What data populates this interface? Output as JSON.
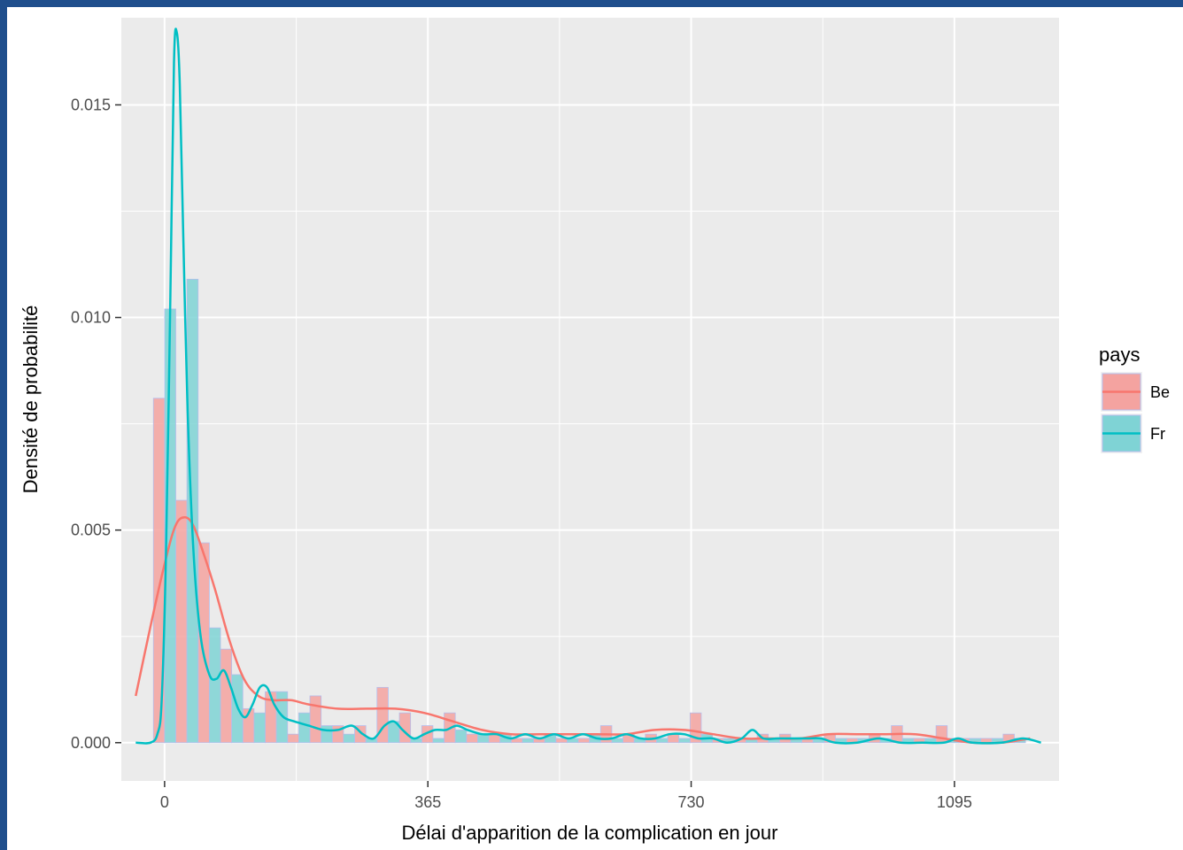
{
  "chart_data": {
    "type": "bar",
    "subtype": "histogram with density curves",
    "title": "",
    "xlabel": "Délai d'apparition de la complication en jour",
    "ylabel": "Densité de probabilité",
    "xlim": [
      -60,
      1240
    ],
    "ylim": [
      -0.0009,
      0.01705
    ],
    "x_ticks": [
      0,
      365,
      730,
      1095
    ],
    "x_tick_labels": [
      "0",
      "365",
      "730",
      "1095"
    ],
    "y_ticks": [
      0.0,
      0.005,
      0.01,
      0.015
    ],
    "y_tick_labels": [
      "0.000",
      "0.005",
      "0.010",
      "0.015"
    ],
    "grid": true,
    "bin_width": 31,
    "legend": {
      "title": "pays",
      "position": "right",
      "entries": [
        "Be",
        "Fr"
      ]
    },
    "series": [
      {
        "name": "Be",
        "color": "#F8766D",
        "fill": "#F4A3A0",
        "bins": [
          {
            "x": 0,
            "y": 0.0081
          },
          {
            "x": 31,
            "y": 0.0057
          },
          {
            "x": 62,
            "y": 0.0047
          },
          {
            "x": 93,
            "y": 0.0022
          },
          {
            "x": 124,
            "y": 0.0008
          },
          {
            "x": 155,
            "y": 0.0012
          },
          {
            "x": 186,
            "y": 0.0002
          },
          {
            "x": 217,
            "y": 0.0011
          },
          {
            "x": 248,
            "y": 0.0004
          },
          {
            "x": 279,
            "y": 0.0004
          },
          {
            "x": 310,
            "y": 0.0013
          },
          {
            "x": 341,
            "y": 0.0007
          },
          {
            "x": 372,
            "y": 0.0004
          },
          {
            "x": 403,
            "y": 0.0007
          },
          {
            "x": 434,
            "y": 0.0002
          },
          {
            "x": 465,
            "y": 0.0002
          },
          {
            "x": 496,
            "y": 0.0001
          },
          {
            "x": 527,
            "y": 0.0001
          },
          {
            "x": 558,
            "y": 0.0001
          },
          {
            "x": 589,
            "y": 0.0001
          },
          {
            "x": 620,
            "y": 0.0004
          },
          {
            "x": 651,
            "y": 0.0002
          },
          {
            "x": 682,
            "y": 0.0002
          },
          {
            "x": 713,
            "y": 0.0002
          },
          {
            "x": 744,
            "y": 0.0007
          },
          {
            "x": 775,
            "y": 0.0001
          },
          {
            "x": 806,
            "y": 0.0001
          },
          {
            "x": 837,
            "y": 0.0002
          },
          {
            "x": 868,
            "y": 0.0002
          },
          {
            "x": 899,
            "y": 0.0001
          },
          {
            "x": 930,
            "y": 0.0002
          },
          {
            "x": 961,
            "y": 0.0001
          },
          {
            "x": 992,
            "y": 0.0002
          },
          {
            "x": 1023,
            "y": 0.0004
          },
          {
            "x": 1054,
            "y": 0.0001
          },
          {
            "x": 1085,
            "y": 0.0004
          },
          {
            "x": 1116,
            "y": 0.0001
          },
          {
            "x": 1147,
            "y": 0.0001
          },
          {
            "x": 1178,
            "y": 0.0002
          }
        ],
        "density": [
          [
            -40,
            0.0011
          ],
          [
            -20,
            0.0027
          ],
          [
            0,
            0.0042
          ],
          [
            15,
            0.0051
          ],
          [
            28,
            0.0053
          ],
          [
            40,
            0.0051
          ],
          [
            55,
            0.0044
          ],
          [
            70,
            0.0036
          ],
          [
            90,
            0.0024
          ],
          [
            110,
            0.0015
          ],
          [
            130,
            0.0011
          ],
          [
            150,
            0.001
          ],
          [
            175,
            0.001
          ],
          [
            200,
            0.0009
          ],
          [
            240,
            0.0008
          ],
          [
            280,
            0.0008
          ],
          [
            320,
            0.0008
          ],
          [
            360,
            0.0007
          ],
          [
            400,
            0.0005
          ],
          [
            440,
            0.0003
          ],
          [
            480,
            0.0002
          ],
          [
            520,
            0.0002
          ],
          [
            560,
            0.0002
          ],
          [
            600,
            0.0002
          ],
          [
            640,
            0.0002
          ],
          [
            680,
            0.0003
          ],
          [
            720,
            0.0003
          ],
          [
            760,
            0.0002
          ],
          [
            800,
            0.0001
          ],
          [
            840,
            0.0001
          ],
          [
            880,
            0.0001
          ],
          [
            920,
            0.0002
          ],
          [
            960,
            0.0002
          ],
          [
            1000,
            0.0002
          ],
          [
            1040,
            0.0002
          ],
          [
            1080,
            0.0001
          ],
          [
            1120,
            0.0
          ],
          [
            1160,
            0.0
          ],
          [
            1200,
            0.0001
          ]
        ]
      },
      {
        "name": "Fr",
        "color": "#00BFC4",
        "fill": "#7FD3D5",
        "bins": [
          {
            "x": 0,
            "y": 0.0102
          },
          {
            "x": 31,
            "y": 0.0109
          },
          {
            "x": 62,
            "y": 0.0027
          },
          {
            "x": 93,
            "y": 0.0016
          },
          {
            "x": 124,
            "y": 0.0007
          },
          {
            "x": 155,
            "y": 0.0012
          },
          {
            "x": 186,
            "y": 0.0007
          },
          {
            "x": 217,
            "y": 0.0004
          },
          {
            "x": 248,
            "y": 0.0002
          },
          {
            "x": 279,
            "y": 0.0001
          },
          {
            "x": 310,
            "y": 0.0005
          },
          {
            "x": 341,
            "y": 0.0001
          },
          {
            "x": 372,
            "y": 0.0001
          },
          {
            "x": 403,
            "y": 0.0003
          },
          {
            "x": 434,
            "y": 0.0002
          },
          {
            "x": 465,
            "y": 0.0002
          },
          {
            "x": 496,
            "y": 0.0001
          },
          {
            "x": 527,
            "y": 0.0002
          },
          {
            "x": 558,
            "y": 0.0001
          },
          {
            "x": 589,
            "y": 0.0002
          },
          {
            "x": 620,
            "y": 0.0001
          },
          {
            "x": 651,
            "y": 0.0001
          },
          {
            "x": 682,
            "y": 0.0001
          },
          {
            "x": 713,
            "y": 0.0001
          },
          {
            "x": 744,
            "y": 0.0002
          },
          {
            "x": 775,
            "y": 0.0001
          },
          {
            "x": 806,
            "y": 0.0001
          },
          {
            "x": 837,
            "y": 0.0001
          },
          {
            "x": 868,
            "y": 0.0001
          },
          {
            "x": 899,
            "y": 0.0001
          },
          {
            "x": 930,
            "y": 0.0001
          },
          {
            "x": 961,
            "y": 0.0001
          },
          {
            "x": 992,
            "y": 0.0001
          },
          {
            "x": 1023,
            "y": 0.0001
          },
          {
            "x": 1054,
            "y": 0.0001
          },
          {
            "x": 1085,
            "y": 0.0001
          },
          {
            "x": 1116,
            "y": 0.0001
          },
          {
            "x": 1147,
            "y": 0.0001
          },
          {
            "x": 1178,
            "y": 0.0001
          }
        ],
        "density": [
          [
            -40,
            0.0
          ],
          [
            -20,
            0.0
          ],
          [
            -10,
            0.0002
          ],
          [
            -4,
            0.001
          ],
          [
            2,
            0.0045
          ],
          [
            8,
            0.0105
          ],
          [
            13,
            0.016
          ],
          [
            17,
            0.0167
          ],
          [
            21,
            0.0155
          ],
          [
            26,
            0.0118
          ],
          [
            32,
            0.0078
          ],
          [
            40,
            0.0045
          ],
          [
            50,
            0.0025
          ],
          [
            62,
            0.0016
          ],
          [
            72,
            0.0015
          ],
          [
            82,
            0.0017
          ],
          [
            92,
            0.0013
          ],
          [
            102,
            0.0008
          ],
          [
            112,
            0.0006
          ],
          [
            122,
            0.0009
          ],
          [
            132,
            0.0013
          ],
          [
            142,
            0.0013
          ],
          [
            152,
            0.0009
          ],
          [
            165,
            0.0006
          ],
          [
            180,
            0.0005
          ],
          [
            200,
            0.0004
          ],
          [
            220,
            0.0003
          ],
          [
            240,
            0.0003
          ],
          [
            260,
            0.0004
          ],
          [
            275,
            0.0002
          ],
          [
            290,
            0.0001
          ],
          [
            305,
            0.0004
          ],
          [
            318,
            0.0005
          ],
          [
            330,
            0.0003
          ],
          [
            345,
            0.0001
          ],
          [
            360,
            0.0002
          ],
          [
            375,
            0.0003
          ],
          [
            390,
            0.0003
          ],
          [
            405,
            0.0004
          ],
          [
            420,
            0.0003
          ],
          [
            440,
            0.0002
          ],
          [
            460,
            0.0002
          ],
          [
            480,
            0.0001
          ],
          [
            500,
            0.0002
          ],
          [
            520,
            0.0001
          ],
          [
            540,
            0.0002
          ],
          [
            560,
            0.0001
          ],
          [
            580,
            0.0002
          ],
          [
            600,
            0.0001
          ],
          [
            620,
            0.0001
          ],
          [
            640,
            0.0002
          ],
          [
            660,
            0.0001
          ],
          [
            680,
            0.0001
          ],
          [
            700,
            0.0002
          ],
          [
            720,
            0.0002
          ],
          [
            740,
            0.0001
          ],
          [
            760,
            0.0001
          ],
          [
            780,
            0.0
          ],
          [
            800,
            0.0001
          ],
          [
            815,
            0.0003
          ],
          [
            830,
            0.0001
          ],
          [
            850,
            0.0001
          ],
          [
            870,
            0.0001
          ],
          [
            890,
            0.0001
          ],
          [
            910,
            0.0001
          ],
          [
            930,
            0.0
          ],
          [
            960,
            0.0
          ],
          [
            990,
            0.0001
          ],
          [
            1020,
            0.0
          ],
          [
            1050,
            0.0
          ],
          [
            1080,
            0.0
          ],
          [
            1100,
            0.0001
          ],
          [
            1120,
            0.0
          ],
          [
            1160,
            0.0
          ],
          [
            1190,
            0.0001
          ],
          [
            1215,
            0.0
          ]
        ]
      }
    ]
  }
}
